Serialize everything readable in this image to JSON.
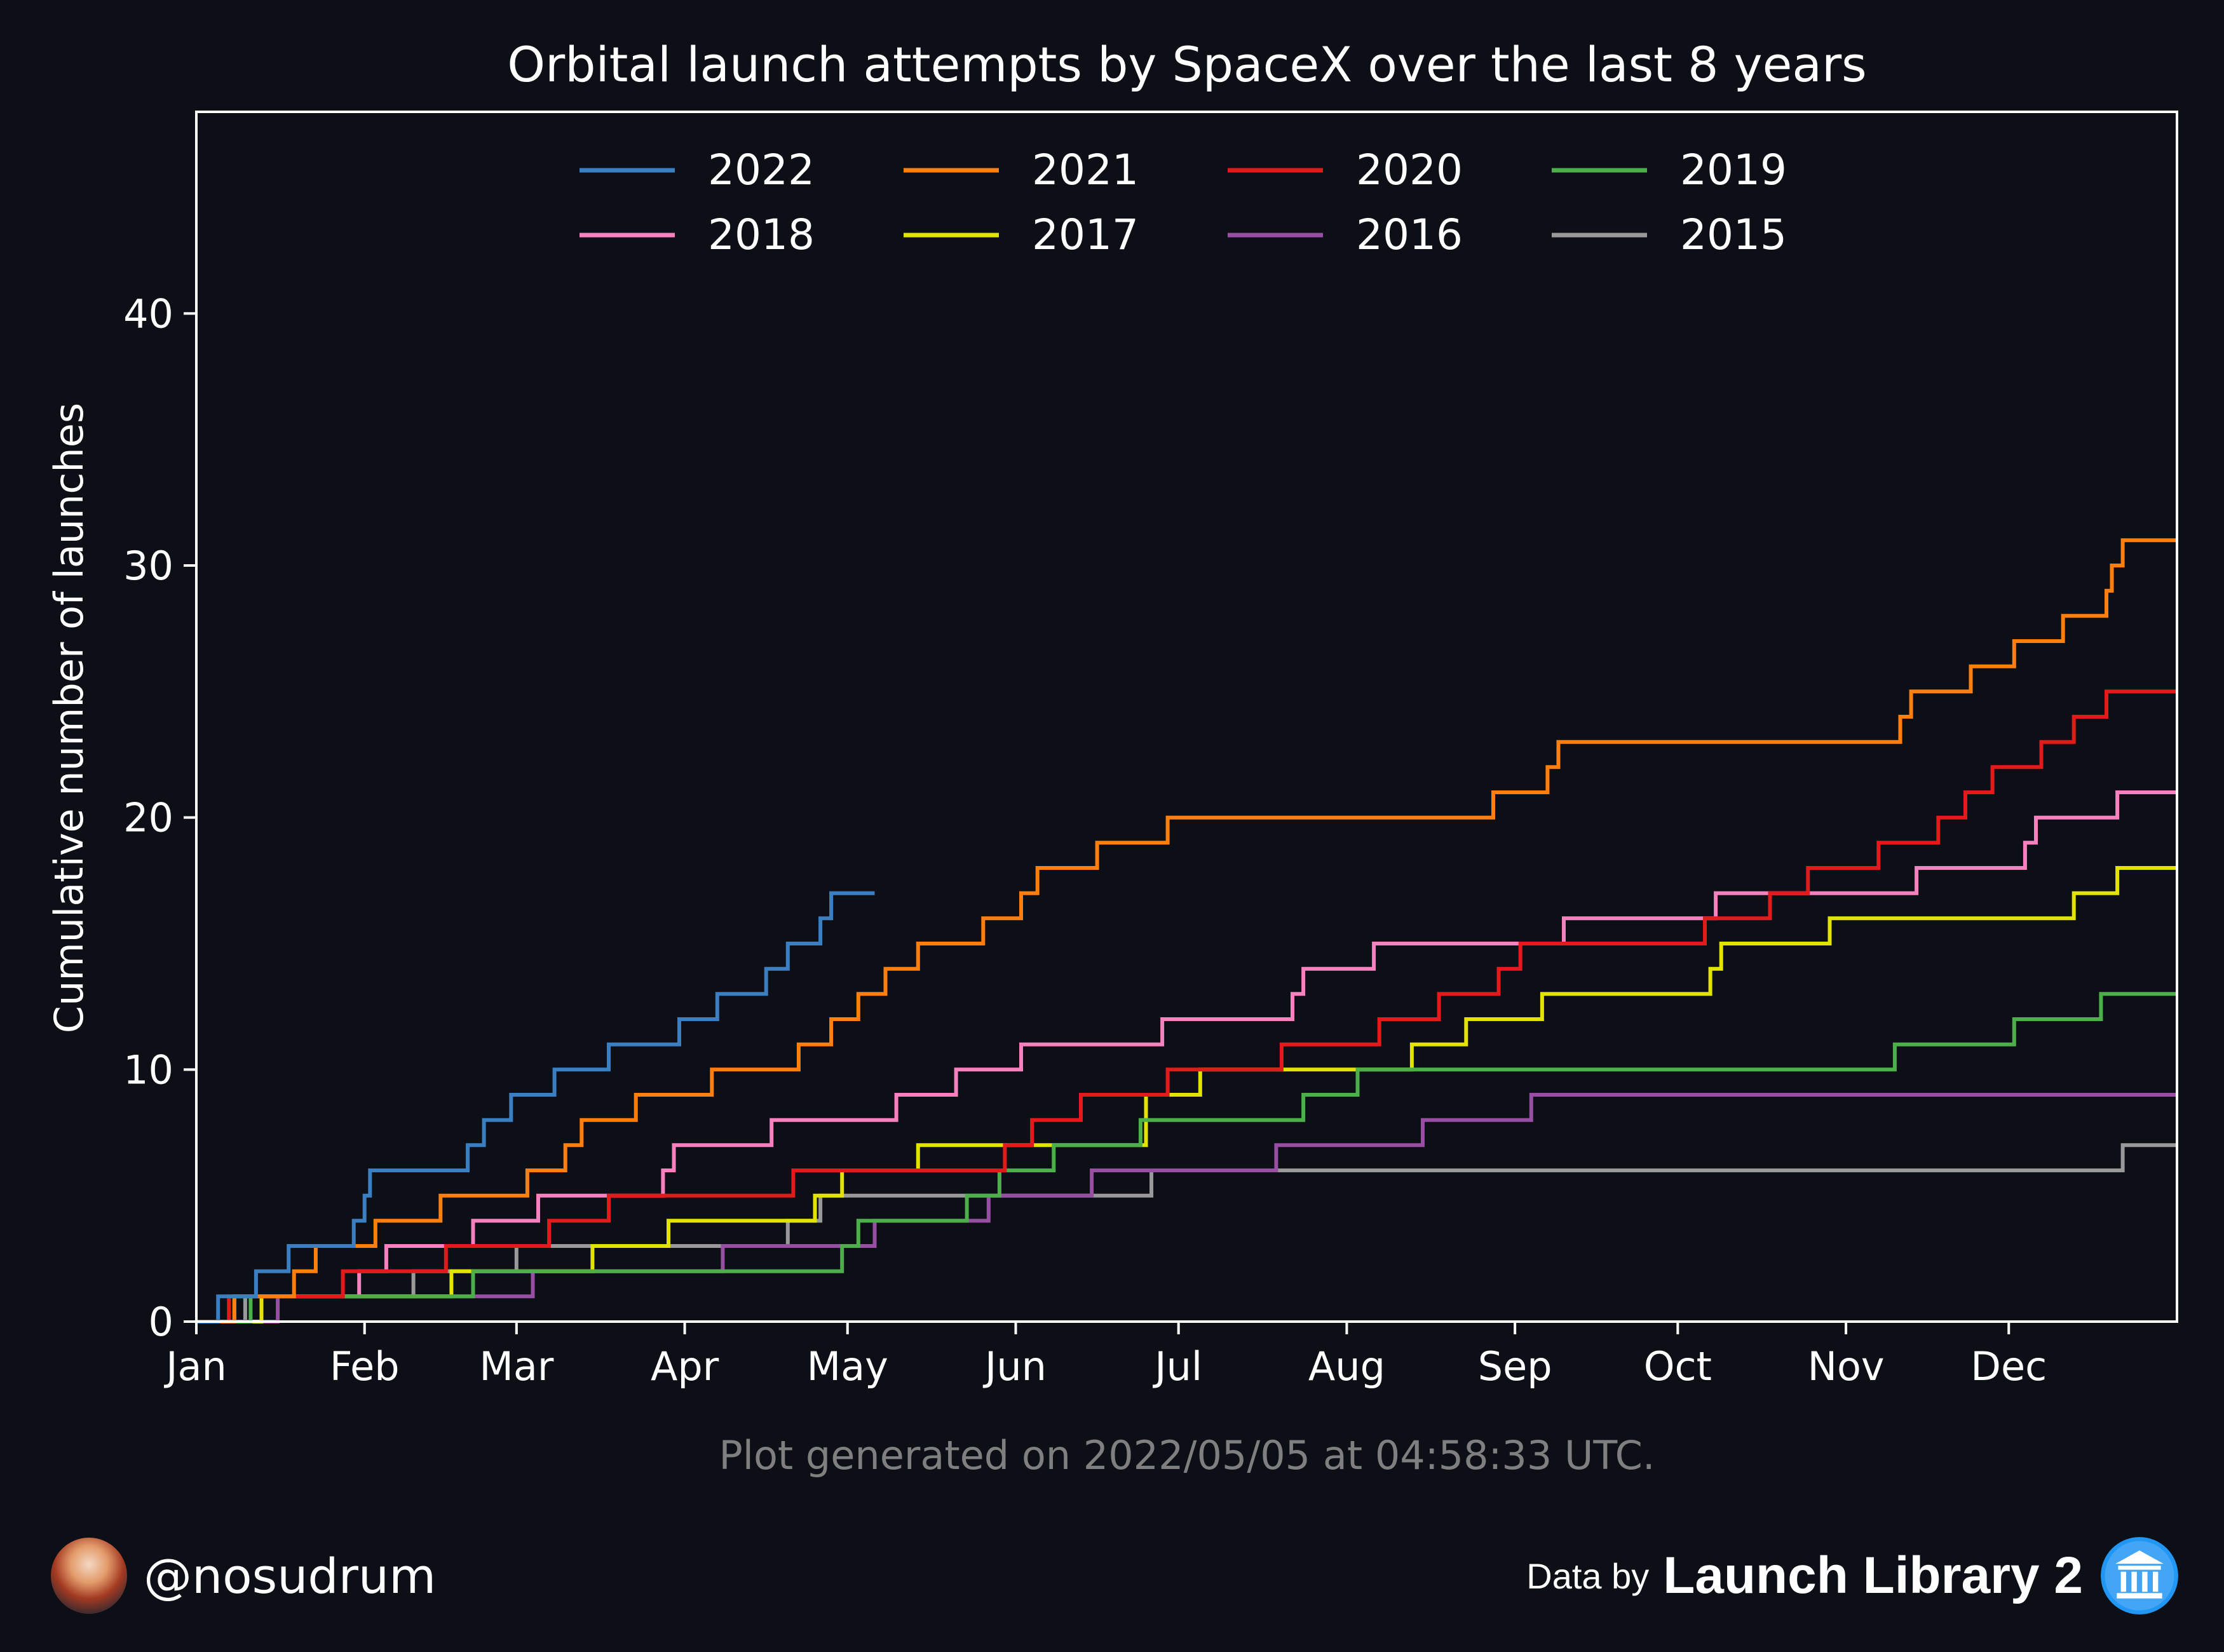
{
  "chart_data": {
    "type": "line",
    "title": "Orbital launch attempts by SpaceX over the last 8 years",
    "xlabel": "",
    "ylabel": "Cumulative number of launches",
    "xlim": [
      0,
      365
    ],
    "ylim": [
      0,
      48
    ],
    "yticks": [
      0,
      10,
      20,
      30,
      40
    ],
    "xticks": [
      {
        "day": 0,
        "label": "Jan"
      },
      {
        "day": 31,
        "label": "Feb"
      },
      {
        "day": 59,
        "label": "Mar"
      },
      {
        "day": 90,
        "label": "Apr"
      },
      {
        "day": 120,
        "label": "May"
      },
      {
        "day": 151,
        "label": "Jun"
      },
      {
        "day": 181,
        "label": "Jul"
      },
      {
        "day": 212,
        "label": "Aug"
      },
      {
        "day": 243,
        "label": "Sep"
      },
      {
        "day": 273,
        "label": "Oct"
      },
      {
        "day": 304,
        "label": "Nov"
      },
      {
        "day": 334,
        "label": "Dec"
      }
    ],
    "legend_position": "upper-center",
    "grid": false,
    "series": [
      {
        "name": "2022",
        "color": "#3a7fc1",
        "points": [
          [
            0,
            0
          ],
          [
            4,
            1
          ],
          [
            11,
            2
          ],
          [
            17,
            3
          ],
          [
            29,
            4
          ],
          [
            31,
            5
          ],
          [
            32,
            6
          ],
          [
            50,
            7
          ],
          [
            53,
            8
          ],
          [
            58,
            9
          ],
          [
            66,
            10
          ],
          [
            76,
            11
          ],
          [
            89,
            12
          ],
          [
            96,
            13
          ],
          [
            105,
            14
          ],
          [
            109,
            15
          ],
          [
            115,
            16
          ],
          [
            117,
            17
          ],
          [
            125,
            17
          ]
        ]
      },
      {
        "name": "2021",
        "color": "#ff7f0e",
        "points": [
          [
            0,
            0
          ],
          [
            7,
            1
          ],
          [
            18,
            2
          ],
          [
            22,
            3
          ],
          [
            33,
            4
          ],
          [
            45,
            5
          ],
          [
            61,
            6
          ],
          [
            68,
            7
          ],
          [
            71,
            8
          ],
          [
            81,
            9
          ],
          [
            95,
            10
          ],
          [
            111,
            11
          ],
          [
            117,
            12
          ],
          [
            122,
            13
          ],
          [
            127,
            14
          ],
          [
            133,
            15
          ],
          [
            145,
            16
          ],
          [
            152,
            17
          ],
          [
            155,
            18
          ],
          [
            166,
            19
          ],
          [
            179,
            20
          ],
          [
            239,
            21
          ],
          [
            249,
            22
          ],
          [
            251,
            23
          ],
          [
            314,
            24
          ],
          [
            316,
            25
          ],
          [
            327,
            26
          ],
          [
            335,
            27
          ],
          [
            344,
            28
          ],
          [
            352,
            29
          ],
          [
            353,
            30
          ],
          [
            355,
            31
          ],
          [
            365,
            31
          ]
        ]
      },
      {
        "name": "2020",
        "color": "#e31a1c",
        "points": [
          [
            0,
            0
          ],
          [
            6,
            1
          ],
          [
            27,
            2
          ],
          [
            46,
            3
          ],
          [
            65,
            4
          ],
          [
            76,
            5
          ],
          [
            110,
            6
          ],
          [
            149,
            7
          ],
          [
            154,
            8
          ],
          [
            163,
            9
          ],
          [
            179,
            10
          ],
          [
            200,
            11
          ],
          [
            218,
            12
          ],
          [
            229,
            13
          ],
          [
            240,
            14
          ],
          [
            244,
            15
          ],
          [
            278,
            16
          ],
          [
            290,
            17
          ],
          [
            297,
            18
          ],
          [
            310,
            19
          ],
          [
            321,
            20
          ],
          [
            326,
            21
          ],
          [
            331,
            22
          ],
          [
            340,
            23
          ],
          [
            346,
            24
          ],
          [
            352,
            25
          ],
          [
            365,
            25
          ]
        ]
      },
      {
        "name": "2019",
        "color": "#4daf4a",
        "points": [
          [
            0,
            0
          ],
          [
            10,
            1
          ],
          [
            51,
            2
          ],
          [
            119,
            3
          ],
          [
            122,
            4
          ],
          [
            142,
            5
          ],
          [
            148,
            6
          ],
          [
            158,
            7
          ],
          [
            174,
            8
          ],
          [
            204,
            9
          ],
          [
            214,
            10
          ],
          [
            313,
            11
          ],
          [
            335,
            12
          ],
          [
            351,
            13
          ],
          [
            365,
            13
          ]
        ]
      },
      {
        "name": "2018",
        "color": "#f781bf",
        "points": [
          [
            0,
            0
          ],
          [
            7,
            1
          ],
          [
            30,
            2
          ],
          [
            35,
            3
          ],
          [
            51,
            4
          ],
          [
            63,
            5
          ],
          [
            86,
            6
          ],
          [
            88,
            7
          ],
          [
            106,
            8
          ],
          [
            129,
            9
          ],
          [
            140,
            10
          ],
          [
            152,
            11
          ],
          [
            178,
            12
          ],
          [
            202,
            13
          ],
          [
            204,
            14
          ],
          [
            217,
            15
          ],
          [
            252,
            16
          ],
          [
            280,
            17
          ],
          [
            317,
            18
          ],
          [
            337,
            19
          ],
          [
            339,
            20
          ],
          [
            354,
            21
          ],
          [
            365,
            21
          ]
        ]
      },
      {
        "name": "2017",
        "color": "#e3e300",
        "points": [
          [
            0,
            0
          ],
          [
            12,
            1
          ],
          [
            47,
            2
          ],
          [
            73,
            3
          ],
          [
            87,
            4
          ],
          [
            114,
            5
          ],
          [
            119,
            6
          ],
          [
            133,
            7
          ],
          [
            175,
            8
          ],
          [
            175,
            9
          ],
          [
            185,
            10
          ],
          [
            224,
            11
          ],
          [
            234,
            12
          ],
          [
            248,
            13
          ],
          [
            279,
            14
          ],
          [
            281,
            15
          ],
          [
            301,
            16
          ],
          [
            346,
            17
          ],
          [
            354,
            18
          ],
          [
            365,
            18
          ]
        ]
      },
      {
        "name": "2016",
        "color": "#984ea3",
        "points": [
          [
            0,
            0
          ],
          [
            15,
            1
          ],
          [
            62,
            2
          ],
          [
            97,
            3
          ],
          [
            125,
            4
          ],
          [
            146,
            5
          ],
          [
            165,
            6
          ],
          [
            199,
            7
          ],
          [
            226,
            8
          ],
          [
            246,
            9
          ],
          [
            365,
            9
          ]
        ]
      },
      {
        "name": "2015",
        "color": "#999999",
        "points": [
          [
            0,
            0
          ],
          [
            9,
            1
          ],
          [
            40,
            2
          ],
          [
            59,
            3
          ],
          [
            109,
            4
          ],
          [
            115,
            5
          ],
          [
            176,
            6
          ],
          [
            355,
            7
          ],
          [
            365,
            7
          ]
        ]
      }
    ],
    "annotation": "Plot generated on 2022/05/05 at 04:58:33 UTC."
  },
  "footer": {
    "handle": "@nosudrum",
    "data_by": "Data by",
    "source": "Launch Library 2",
    "avatar_icon": "astronaut-avatar-icon",
    "source_icon": "library-building-icon"
  }
}
